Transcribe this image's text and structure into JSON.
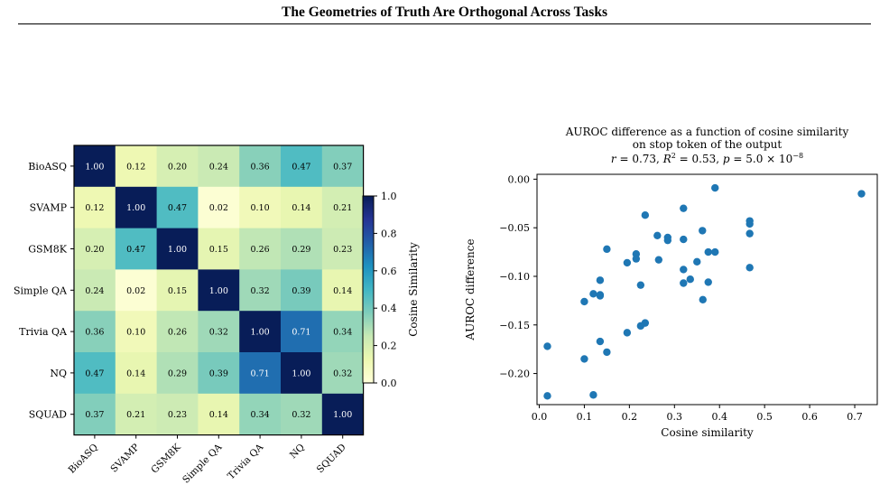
{
  "page": {
    "header_title": "The Geometries of Truth Are Orthogonal Across Tasks"
  },
  "colors": {
    "scatter_point": "#1f77b4",
    "colormap": [
      "#ffffd9",
      "#edf8b1",
      "#c7e9b4",
      "#7fcdbb",
      "#41b6c4",
      "#1d91c0",
      "#225ea8",
      "#253494",
      "#081d58"
    ]
  },
  "chart_data": [
    {
      "type": "heatmap",
      "title": "",
      "row_labels": [
        "BioASQ",
        "SVAMP",
        "GSM8K",
        "Simple QA",
        "Trivia QA",
        "NQ",
        "SQUAD"
      ],
      "col_labels": [
        "BioASQ",
        "SVAMP",
        "GSM8K",
        "Simple QA",
        "Trivia QA",
        "NQ",
        "SQUAD"
      ],
      "values": [
        [
          1.0,
          0.12,
          0.2,
          0.24,
          0.36,
          0.47,
          0.37
        ],
        [
          0.12,
          1.0,
          0.47,
          0.02,
          0.1,
          0.14,
          0.21
        ],
        [
          0.2,
          0.47,
          1.0,
          0.15,
          0.26,
          0.29,
          0.23
        ],
        [
          0.24,
          0.02,
          0.15,
          1.0,
          0.32,
          0.39,
          0.14
        ],
        [
          0.36,
          0.1,
          0.26,
          0.32,
          1.0,
          0.71,
          0.34
        ],
        [
          0.47,
          0.14,
          0.29,
          0.39,
          0.71,
          1.0,
          0.32
        ],
        [
          0.37,
          0.21,
          0.23,
          0.14,
          0.34,
          0.32,
          1.0
        ]
      ],
      "colorbar": {
        "label": "Cosine Similarity",
        "range": [
          0.0,
          1.0
        ],
        "ticks": [
          "0.0",
          "0.2",
          "0.4",
          "0.6",
          "0.8",
          "1.0"
        ]
      }
    },
    {
      "type": "scatter",
      "title_lines": [
        "AUROC difference as a function of cosine similarity",
        "on stop token of the output"
      ],
      "title_stats": {
        "r_label": "r",
        "r_value": "0.73",
        "r2_label": "R",
        "r2_value": "0.53",
        "p_label": "p",
        "p_value": "5.0 × 10",
        "p_exponent": "−8"
      },
      "xlabel": "Cosine similarity",
      "ylabel": "AUROC difference",
      "xlim": [
        -0.005,
        0.75
      ],
      "ylim": [
        -0.232,
        0.005
      ],
      "xticks": [
        {
          "v": 0.0,
          "label": "0.0"
        },
        {
          "v": 0.1,
          "label": "0.1"
        },
        {
          "v": 0.2,
          "label": "0.2"
        },
        {
          "v": 0.3,
          "label": "0.3"
        },
        {
          "v": 0.4,
          "label": "0.4"
        },
        {
          "v": 0.5,
          "label": "0.5"
        },
        {
          "v": 0.6,
          "label": "0.6"
        },
        {
          "v": 0.7,
          "label": "0.7"
        }
      ],
      "yticks": [
        {
          "v": 0.0,
          "label": "0.00"
        },
        {
          "v": -0.05,
          "label": "−0.05"
        },
        {
          "v": -0.1,
          "label": "−0.10"
        },
        {
          "v": -0.15,
          "label": "−0.15"
        },
        {
          "v": -0.2,
          "label": "−0.20"
        }
      ],
      "x": [
        0.39,
        0.715,
        0.32,
        0.467,
        0.467,
        0.362,
        0.467,
        0.285,
        0.32,
        0.262,
        0.285,
        0.235,
        0.15,
        0.215,
        0.375,
        0.39,
        0.215,
        0.265,
        0.35,
        0.195,
        0.467,
        0.32,
        0.135,
        0.32,
        0.375,
        0.335,
        0.225,
        0.12,
        0.135,
        0.135,
        0.363,
        0.1,
        0.235,
        0.225,
        0.195,
        0.135,
        0.15,
        0.1,
        0.018,
        0.018,
        0.12
      ],
      "y": [
        -0.009,
        -0.015,
        -0.03,
        -0.043,
        -0.046,
        -0.053,
        -0.056,
        -0.06,
        -0.062,
        -0.058,
        -0.063,
        -0.037,
        -0.072,
        -0.077,
        -0.075,
        -0.075,
        -0.082,
        -0.083,
        -0.085,
        -0.086,
        -0.091,
        -0.093,
        -0.104,
        -0.107,
        -0.106,
        -0.103,
        -0.109,
        -0.118,
        -0.12,
        -0.119,
        -0.124,
        -0.126,
        -0.148,
        -0.151,
        -0.158,
        -0.167,
        -0.178,
        -0.185,
        -0.172,
        -0.223,
        -0.222
      ]
    }
  ]
}
